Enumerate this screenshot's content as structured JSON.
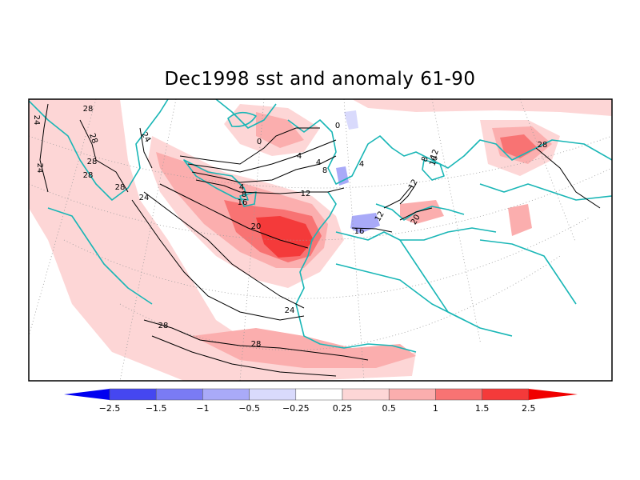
{
  "title": "Dec1998 sst and anomaly 61-90",
  "colors": {
    "coast": "#19b6b6",
    "graticule": "#9a9a9a",
    "contour": "#000000",
    "frame": "#000000",
    "anom_pos_0_25": "#fdd6d6",
    "anom_pos_0_5": "#fbaeae",
    "anom_pos_1": "#f87373",
    "anom_pos_1_5": "#f43a3a",
    "anom_pos_2_5": "#f00000",
    "anom_neg_0_25": "#d9dafc",
    "anom_neg_0_5": "#a9aaf8",
    "anom_neg_1": "#7a7bf4",
    "anom_neg_1_5": "#4547f0",
    "anom_neg_2_5": "#0000f0"
  },
  "contour_labels": [
    "28",
    "24",
    "28",
    "24",
    "28",
    "28",
    "24",
    "0",
    "4",
    "4",
    "8",
    "4",
    "8",
    "12",
    "16",
    "20",
    "24",
    "28",
    "28",
    "16",
    "12",
    "20",
    "28",
    "0",
    "8",
    "4",
    "12",
    "16",
    "12",
    "28",
    "24"
  ],
  "legend": {
    "ticks": [
      "−2.5",
      "−1.5",
      "−1",
      "−0.5",
      "−0.25",
      "0.25",
      "0.5",
      "1",
      "1.5",
      "2.5"
    ],
    "colors": [
      "#0000f0",
      "#4547f0",
      "#7a7bf4",
      "#a9aaf8",
      "#d9dafc",
      "#ffffff",
      "#fdd6d6",
      "#fbaeae",
      "#f87373",
      "#f43a3a",
      "#f00000"
    ]
  }
}
